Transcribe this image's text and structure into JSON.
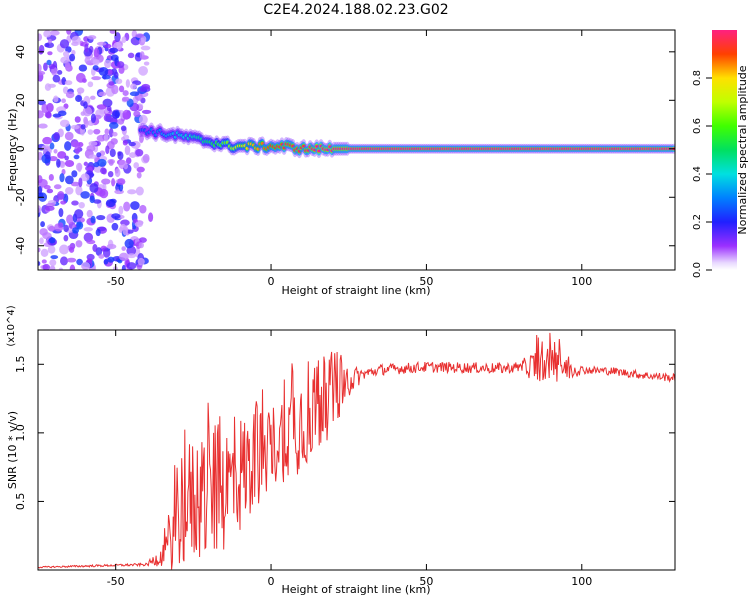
{
  "title": "C2E4.2024.188.02.23.G02",
  "chart_data": [
    {
      "type": "heatmap",
      "title": "C2E4.2024.188.02.23.G02",
      "xlabel": "Height of straight line (km)",
      "ylabel": "Frequency (Hz)",
      "xlim": [
        -75,
        130
      ],
      "ylim": [
        -50,
        49
      ],
      "xticks": [
        -50,
        0,
        50,
        100
      ],
      "yticks": [
        -40,
        -20,
        0,
        20,
        40
      ],
      "colorbar": {
        "label": "Normalized spectral amplitude",
        "range": [
          0,
          1
        ],
        "ticks": [
          "0.0",
          "0.2",
          "0.4",
          "0.6",
          "0.8"
        ]
      },
      "ridge": {
        "x": [
          -42,
          -38,
          -33,
          -28,
          -24,
          -20,
          -16,
          -12,
          -8,
          -4,
          0,
          5,
          10,
          15,
          20,
          30,
          50,
          80,
          100,
          130
        ],
        "y": [
          8,
          7,
          6,
          5,
          4,
          3,
          2,
          1,
          1,
          1,
          1,
          1,
          0,
          0,
          0,
          0,
          0,
          0,
          0,
          0
        ],
        "amplitude": [
          0.25,
          0.3,
          0.35,
          0.4,
          0.45,
          0.5,
          0.6,
          0.7,
          0.8,
          0.85,
          0.9,
          0.95,
          0.95,
          1.0,
          1.0,
          1.0,
          1.0,
          1.0,
          1.0,
          1.0
        ]
      },
      "noise_region_x": [
        -75,
        -40
      ],
      "noise_amplitude_range": [
        0.05,
        0.25
      ]
    },
    {
      "type": "line",
      "xlabel": "Height of straight line (km)",
      "ylabel": "SNR (10 * v/v)",
      "y_multiplier": "(x10^4)",
      "xlim": [
        -75,
        130
      ],
      "ylim": [
        0,
        1.75
      ],
      "xticks": [
        -50,
        0,
        50,
        100
      ],
      "yticks": [
        0.5,
        1.0,
        1.5
      ],
      "ytick_labels": [
        "0.5",
        "1.0",
        "1.5"
      ],
      "color": "#e83030",
      "envelope": {
        "x": [
          -75,
          -40,
          -37,
          -34,
          -32,
          -30,
          -25,
          -20,
          -15,
          -10,
          -5,
          0,
          5,
          10,
          15,
          20,
          25,
          30,
          35,
          50,
          75,
          90,
          100,
          110,
          120,
          130
        ],
        "y": [
          0.02,
          0.04,
          0.08,
          0.12,
          0.25,
          0.45,
          0.5,
          0.55,
          0.6,
          0.7,
          0.8,
          0.9,
          1.0,
          1.1,
          1.2,
          1.3,
          1.38,
          1.43,
          1.46,
          1.48,
          1.47,
          1.5,
          1.46,
          1.45,
          1.42,
          1.4
        ]
      },
      "noise_amplitude": [
        [
          -75,
          0.005
        ],
        [
          -40,
          0.01
        ],
        [
          -35,
          0.08
        ],
        [
          -30,
          0.45
        ],
        [
          -20,
          0.5
        ],
        [
          -10,
          0.45
        ],
        [
          0,
          0.3
        ],
        [
          10,
          0.4
        ],
        [
          20,
          0.3
        ],
        [
          25,
          0.12
        ],
        [
          30,
          0.04
        ],
        [
          80,
          0.04
        ],
        [
          85,
          0.12
        ],
        [
          95,
          0.12
        ],
        [
          100,
          0.03
        ],
        [
          130,
          0.03
        ]
      ]
    }
  ]
}
